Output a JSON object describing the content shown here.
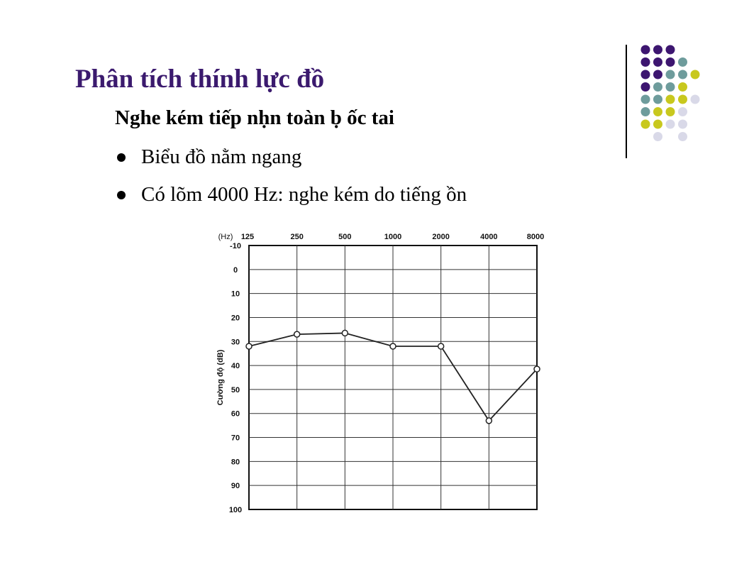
{
  "slide": {
    "title": "Phân tích thính lực đồ",
    "subtitle": "Nghe kém tiếp nḥn toàn ḅ ốc tai",
    "bullets": [
      "Biểu đồ nằm ngang",
      "Có lõm 4000 Hz: nghe kém do tiếng ồn"
    ]
  },
  "decoration": {
    "dot_rows": [
      [
        "purple",
        "purple",
        "purple",
        "",
        "",
        ""
      ],
      [
        "purple",
        "purple",
        "purple",
        "teal",
        "",
        ""
      ],
      [
        "purple",
        "purple",
        "teal",
        "teal",
        "yellow",
        ""
      ],
      [
        "purple",
        "teal",
        "teal",
        "yellow",
        "",
        ""
      ],
      [
        "teal",
        "teal",
        "yellow",
        "yellow",
        "lavender",
        ""
      ],
      [
        "teal",
        "yellow",
        "yellow",
        "lavender",
        "",
        ""
      ],
      [
        "yellow",
        "yellow",
        "lavender",
        "lavender",
        "",
        ""
      ],
      [
        "",
        "lavender",
        "",
        "lavender",
        "",
        ""
      ]
    ],
    "colors": {
      "purple": "#3d1670",
      "teal": "#6e9c9c",
      "yellow": "#c8c81e",
      "lavender": "#d9d9e8",
      "title": "#3b1a6e"
    }
  },
  "chart_data": {
    "type": "line",
    "x_unit_label": "(Hz)",
    "categories": [
      "125",
      "250",
      "500",
      "1000",
      "2000",
      "4000",
      "8000"
    ],
    "ylabel": "Cường độ (dB)",
    "ylim": [
      -10,
      100
    ],
    "y_ticks": [
      "-10",
      "0",
      "10",
      "20",
      "30",
      "40",
      "50",
      "60",
      "70",
      "80",
      "90",
      "100"
    ],
    "y_inverted": true,
    "grid": true,
    "series": [
      {
        "values": [
          32,
          27,
          26.5,
          32,
          32,
          63,
          41.5
        ],
        "marker": "open-circle",
        "color": "#222222"
      }
    ]
  }
}
